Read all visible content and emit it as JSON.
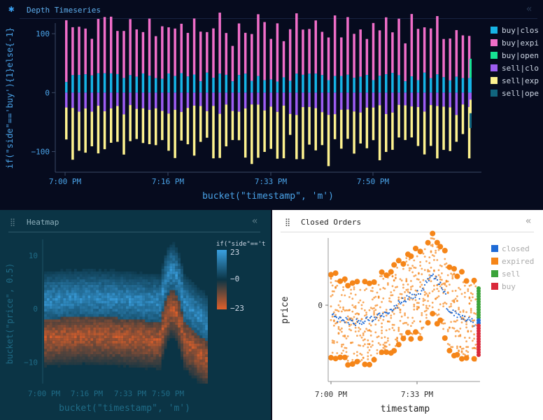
{
  "panels": {
    "depth": {
      "title": "Depth Timeseries",
      "title_icon": "asterisk-icon",
      "collapse_icon": "collapse-chevrons-icon",
      "collapse_glyph": "«",
      "title_glyph": "✱"
    },
    "heatmap": {
      "title": "Heatmap",
      "drag_icon": "drag-handle-icon",
      "drag_glyph": "⣿",
      "collapse_glyph": "«"
    },
    "closed": {
      "title": "Closed Orders",
      "drag_glyph": "⣿",
      "collapse_glyph": "«"
    }
  },
  "colors": {
    "buy_closed": "#17b4e6",
    "buy_expired": "#f06ec9",
    "buy_open": "#16e294",
    "sell_closed": "#9d5df2",
    "sell_expired": "#fdf28f",
    "sell_open": "#11657e",
    "closed": "#1f6bd6",
    "expired": "#f58518",
    "sell": "#3ba33a",
    "buy": "#d9293a",
    "heat_pos": "#3aa0e0",
    "heat_neg": "#e0602a"
  },
  "chart_data": [
    {
      "id": "depth",
      "type": "bar",
      "stacked": true,
      "xlabel": "bucket(\"timestamp\", 'm')",
      "ylabel": "if(\"side\"=='buy'){1}else{-1}",
      "xtick_labels": [
        "7:00 PM",
        "7:16 PM",
        "7:33 PM",
        "7:50 PM"
      ],
      "ytick_labels": [
        "100",
        "0",
        "−100"
      ],
      "y_ticks": [
        100,
        0,
        -100
      ],
      "ylim": [
        -135,
        118
      ],
      "legend": [
        {
          "label": "buy|clos",
          "color": "#17b4e6"
        },
        {
          "label": "buy|expi",
          "color": "#f06ec9"
        },
        {
          "label": "buy|open",
          "color": "#16e294"
        },
        {
          "label": "sell|clo",
          "color": "#9d5df2"
        },
        {
          "label": "sell|exp",
          "color": "#fdf28f"
        },
        {
          "label": "sell|ope",
          "color": "#11657e"
        }
      ],
      "legend_position": "right",
      "bar_count": 64,
      "approx_series": [
        {
          "name": "buy|closed",
          "typical_range": [
            18,
            34
          ]
        },
        {
          "name": "buy|expired",
          "typical_range": [
            60,
            100
          ]
        },
        {
          "name": "sell|closed",
          "typical_range": [
            -20,
            -38
          ]
        },
        {
          "name": "sell|expired",
          "typical_range": [
            -70,
            -115
          ]
        }
      ],
      "last_bar": {
        "buy_open": 25,
        "sell_open": -25
      }
    },
    {
      "id": "heatmap",
      "type": "heatmap",
      "xlabel": "bucket(\"timestamp\", 'm')",
      "ylabel": "bucket(\"price\", 0.5)",
      "xtick_labels": [
        "7:00 PM",
        "7:16 PM",
        "7:33 PM",
        "7:50 PM"
      ],
      "ytick_labels": [
        "10",
        "0",
        "−10"
      ],
      "y_ticks": [
        10,
        0,
        -10
      ],
      "ylim": [
        -14,
        13
      ],
      "colorbar_title": "if(\"side\"=='t",
      "colorbar_ticks": [
        "23",
        "−0",
        "−23"
      ],
      "colorbar_range": [
        -23,
        23
      ]
    },
    {
      "id": "closed",
      "type": "scatter",
      "xlabel": "timestamp",
      "ylabel": "price",
      "xtick_labels": [
        "7:00 PM",
        "7:33 PM"
      ],
      "ytick_labels": [
        "0"
      ],
      "legend": [
        {
          "label": "closed",
          "color": "#1f6bd6"
        },
        {
          "label": "expired",
          "color": "#f58518"
        },
        {
          "label": "sell",
          "color": "#3ba33a"
        },
        {
          "label": "buy",
          "color": "#d9293a"
        }
      ],
      "legend_position": "right"
    }
  ]
}
